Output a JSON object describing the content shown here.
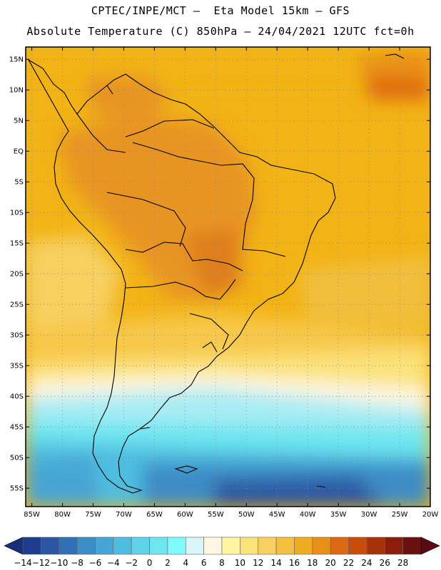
{
  "header": {
    "line1": "CPTEC/INPE/MCT —  Eta Model 15km — GFS",
    "line2": "Absolute Temperature (C) 850hPa — 24/04/2021 12UTC fct=0h"
  },
  "map": {
    "lon_range": [
      -86,
      -20
    ],
    "lat_range": [
      -58,
      17
    ],
    "lat_ticks": [
      "15N",
      "10N",
      "5N",
      "EQ",
      "5S",
      "10S",
      "15S",
      "20S",
      "25S",
      "30S",
      "35S",
      "40S",
      "45S",
      "50S",
      "55S"
    ],
    "lat_values": [
      15,
      10,
      5,
      0,
      -5,
      -10,
      -15,
      -20,
      -25,
      -30,
      -35,
      -40,
      -45,
      -50,
      -55
    ],
    "lon_ticks": [
      "85W",
      "80W",
      "75W",
      "70W",
      "65W",
      "60W",
      "55W",
      "50W",
      "45W",
      "40W",
      "35W",
      "30W",
      "25W",
      "20W"
    ],
    "lon_values": [
      -85,
      -80,
      -75,
      -70,
      -65,
      -60,
      -55,
      -50,
      -45,
      -40,
      -35,
      -30,
      -25,
      -20
    ]
  },
  "colorbar": {
    "labels": [
      "-14",
      "-12",
      "-10",
      "-8",
      "-6",
      "-4",
      "-2",
      "0",
      "2",
      "4",
      "6",
      "8",
      "10",
      "12",
      "14",
      "16",
      "18",
      "20",
      "22",
      "24",
      "26",
      "28"
    ],
    "colors": [
      "#1e3c8c",
      "#2a56a3",
      "#3170b4",
      "#3c8cc6",
      "#46a5d4",
      "#50bde0",
      "#5ed4ea",
      "#6ee6f0",
      "#7ffafa",
      "#d8f6fa",
      "#fdf6e2",
      "#fff5a0",
      "#fbe27a",
      "#f7d060",
      "#f2bf3e",
      "#eeac22",
      "#e6901a",
      "#dc6812",
      "#c84c0a",
      "#a83208",
      "#8a1e0a",
      "#6a1010"
    ]
  }
}
